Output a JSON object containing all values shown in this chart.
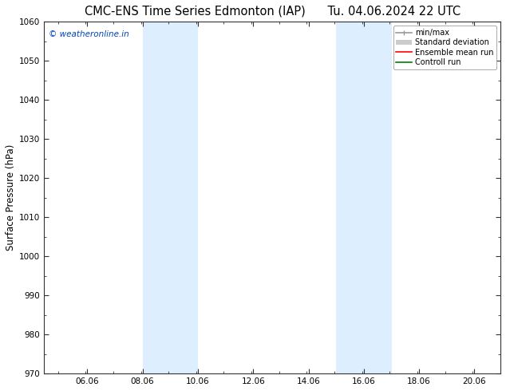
{
  "title_left": "CMC-ENS Time Series Edmonton (IAP)",
  "title_right": "Tu. 04.06.2024 22 UTC",
  "ylabel": "Surface Pressure (hPa)",
  "xlim": [
    4.5,
    21.0
  ],
  "ylim": [
    970,
    1060
  ],
  "yticks": [
    970,
    980,
    990,
    1000,
    1010,
    1020,
    1030,
    1040,
    1050,
    1060
  ],
  "xticks": [
    6.06,
    8.06,
    10.06,
    12.06,
    14.06,
    16.06,
    18.06,
    20.06
  ],
  "xtick_labels": [
    "06.06",
    "08.06",
    "10.06",
    "12.06",
    "14.06",
    "16.06",
    "18.06",
    "20.06"
  ],
  "shaded_bands": [
    {
      "xmin": 8.06,
      "xmax": 10.06,
      "color": "#ddeeff"
    },
    {
      "xmin": 15.06,
      "xmax": 17.06,
      "color": "#ddeeff"
    }
  ],
  "watermark_text": "© weatheronline.in",
  "watermark_color": "#0044bb",
  "legend_entries": [
    {
      "label": "min/max",
      "color": "#999999",
      "lw": 1.2
    },
    {
      "label": "Standard deviation",
      "color": "#cccccc",
      "lw": 6
    },
    {
      "label": "Ensemble mean run",
      "color": "red",
      "lw": 1.2
    },
    {
      "label": "Controll run",
      "color": "green",
      "lw": 1.2
    }
  ],
  "bg_color": "#ffffff",
  "spine_color": "#333333",
  "tick_color": "#333333",
  "title_fontsize": 10.5,
  "tick_fontsize": 7.5,
  "ylabel_fontsize": 8.5,
  "watermark_fontsize": 7.5,
  "legend_fontsize": 7.0
}
